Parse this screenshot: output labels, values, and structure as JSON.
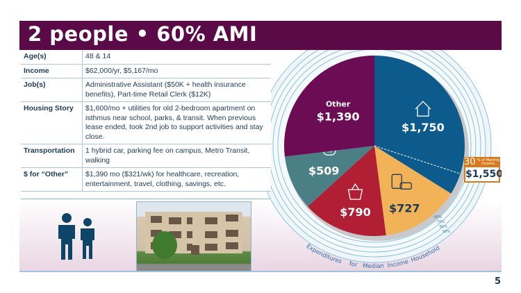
{
  "header": {
    "title": "2 people • 60% AMI"
  },
  "profile": [
    {
      "label": "Age(s)",
      "value": "48 & 14"
    },
    {
      "label": "Income",
      "value": "$62,000/yr, $5,167/mo"
    },
    {
      "label": "Job(s)",
      "value": "Administrative Assistant ($50K + health insurance benefits), Part-time Retail Clerk ($12K)"
    },
    {
      "label": "Housing Story",
      "value": "$1,600/mo + utilities for old 2-bedroom apartment on isthmus near school, parks, & transit. When previous lease ended, took 2nd job to support activities and stay close."
    },
    {
      "label": "Transportation",
      "value": "1 hybrid car, parking fee on campus, Metro Transit, walking"
    },
    {
      "label": "$ for “Other”",
      "value": "$1,390 mo ($321/wk) for healthcare, recreation, entertainment, travel, clothing, savings, etc."
    }
  ],
  "chart_data": {
    "type": "pie",
    "slices": [
      {
        "label": "$1,750",
        "value": 1750,
        "color": "#0d5b8c",
        "icon": "house-icon"
      },
      {
        "label": "$727",
        "value": 727,
        "color": "#f2b257",
        "icon": "bus-car-icon"
      },
      {
        "label": "$790",
        "value": 790,
        "color": "#b01f34",
        "icon": "grocery-basket-icon"
      },
      {
        "label": "$509",
        "value": 509,
        "color": "#4b7f86",
        "icon": "money-bag-percent-icon"
      },
      {
        "label": "$1,390",
        "value": 1390,
        "color": "#6b0c55",
        "name": "Other"
      }
    ],
    "ring_labels": [
      "60%",
      "70%",
      "80%",
      "90%"
    ],
    "ring_caption": "Expenditures for Median Income Household",
    "threshold": {
      "pct_label": "30",
      "text": "% of Monthly Income:",
      "value": 1550,
      "label": "$1,550"
    }
  },
  "page_number": "5"
}
